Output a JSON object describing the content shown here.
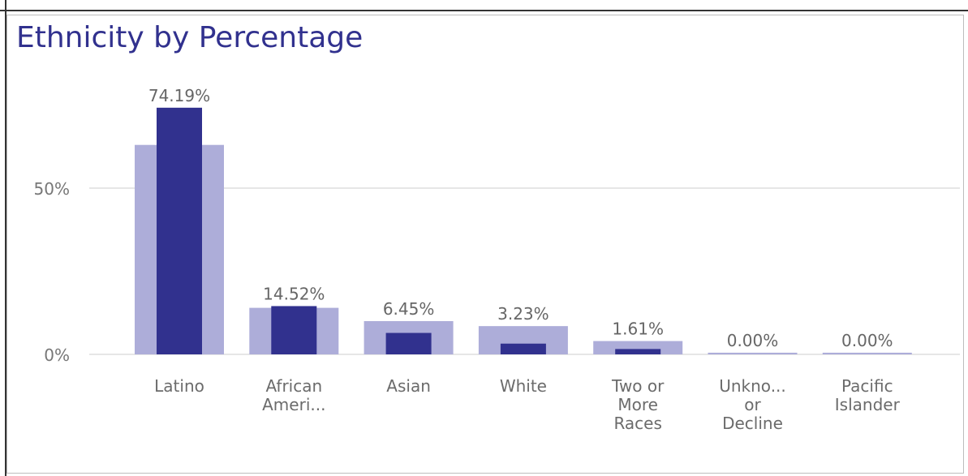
{
  "chart_data": {
    "type": "bar",
    "title": "Ethnicity by Percentage",
    "xlabel": "",
    "ylabel": "",
    "ylim": [
      0,
      75
    ],
    "yticks": [
      {
        "value": 0,
        "label": "0%"
      },
      {
        "value": 50,
        "label": "50%"
      }
    ],
    "grid": true,
    "legend": "none",
    "categories": [
      [
        "Latino"
      ],
      [
        "African",
        "Ameri..."
      ],
      [
        "Asian"
      ],
      [
        "White"
      ],
      [
        "Two or",
        "More",
        "Races"
      ],
      [
        "Unkno...",
        "or",
        "Decline"
      ],
      [
        "Pacific",
        "Islander"
      ]
    ],
    "series": [
      {
        "values": [
          63,
          14,
          10,
          8.5,
          4,
          0.5,
          0.5
        ],
        "color": "#adadd9"
      },
      {
        "values": [
          74.19,
          14.52,
          6.45,
          3.23,
          1.61,
          0.0,
          0.0
        ],
        "labels": [
          "74.19%",
          "14.52%",
          "6.45%",
          "3.23%",
          "1.61%",
          "0.00%",
          "0.00%"
        ],
        "color": "#31318e"
      }
    ],
    "gridline_color": "#e6e6e6"
  }
}
